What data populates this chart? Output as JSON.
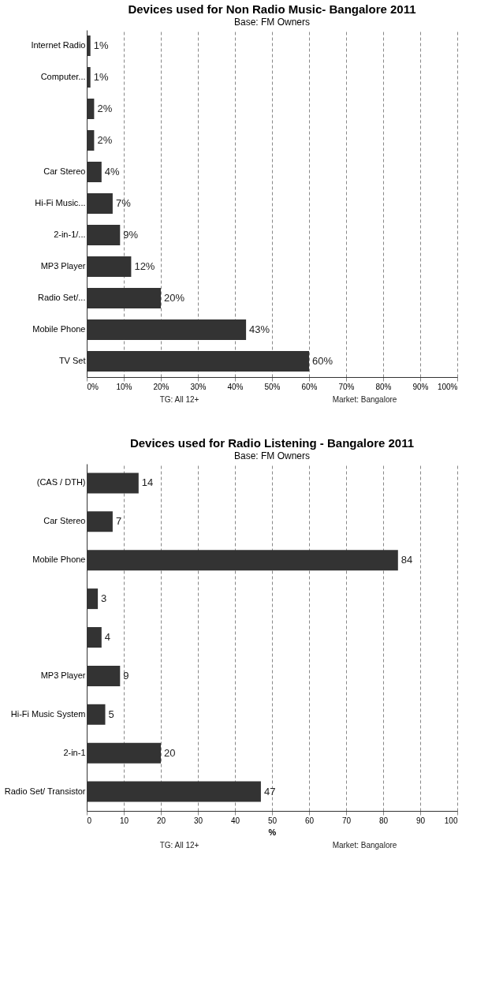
{
  "chart_data": [
    {
      "type": "bar",
      "orientation": "horizontal",
      "title": "Devices used for Non Radio Music- Bangalore 2011",
      "subtitle": "Base: FM Owners",
      "categories": [
        "Internet Radio",
        "Computer...",
        null,
        null,
        "Car Stereo",
        "Hi-Fi Music...",
        "2-in-1/...",
        "MP3 Player",
        "Radio Set/...",
        "Mobile Phone",
        "TV Set"
      ],
      "values": [
        1,
        1,
        2,
        2,
        4,
        7,
        9,
        12,
        20,
        43,
        60
      ],
      "value_labels": [
        "1%",
        "1%",
        "2%",
        "2%",
        "4%",
        "7%",
        "9%",
        "12%",
        "20%",
        "43%",
        "60%"
      ],
      "color": "#333333",
      "xlim": [
        0,
        100
      ],
      "xticks": [
        {
          "value": 0,
          "label": "0%"
        },
        {
          "value": 10,
          "label": "10%"
        },
        {
          "value": 20,
          "label": "20%"
        },
        {
          "value": 30,
          "label": "30%"
        },
        {
          "value": 40,
          "label": "40%"
        },
        {
          "value": 50,
          "label": "50%"
        },
        {
          "value": 60,
          "label": "60%"
        },
        {
          "value": 70,
          "label": "70%"
        },
        {
          "value": 80,
          "label": "80%"
        },
        {
          "value": 90,
          "label": "90%"
        },
        {
          "value": 100,
          "label": "100%"
        }
      ],
      "grid": "x",
      "annotations": [
        "TG: All 12+",
        "Market: Bangalore"
      ]
    },
    {
      "type": "bar",
      "orientation": "horizontal",
      "title": "Devices used for Radio Listening - Bangalore 2011",
      "subtitle": "Base: FM Owners",
      "categories": [
        "(CAS / DTH)",
        "Car Stereo",
        "Mobile Phone",
        null,
        null,
        "MP3 Player",
        "Hi-Fi Music System",
        "2-in-1",
        "Radio Set/ Transistor"
      ],
      "values": [
        14,
        7,
        84,
        3,
        4,
        9,
        5,
        20,
        47
      ],
      "data_labels": true,
      "color": "#333333",
      "xlabel": "%",
      "xlim": [
        0,
        100
      ],
      "xticks": [
        0,
        10,
        20,
        30,
        40,
        50,
        60,
        70,
        80,
        90,
        100
      ],
      "grid": "x",
      "annotations": [
        "TG: All 12+",
        "Market: Bangalore"
      ]
    }
  ]
}
